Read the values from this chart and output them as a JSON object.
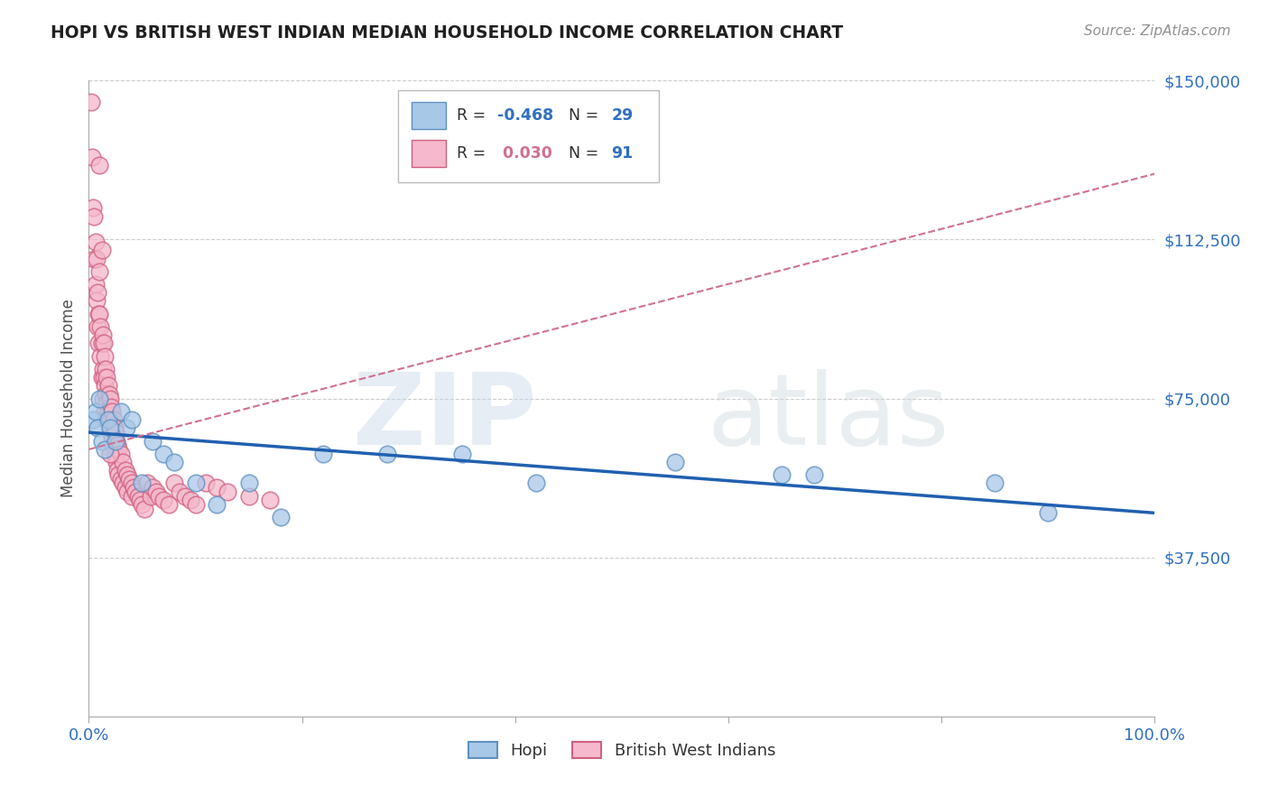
{
  "title": "HOPI VS BRITISH WEST INDIAN MEDIAN HOUSEHOLD INCOME CORRELATION CHART",
  "source": "Source: ZipAtlas.com",
  "ylabel": "Median Household Income",
  "xlim": [
    0,
    1.0
  ],
  "ylim": [
    0,
    150000
  ],
  "yticks": [
    0,
    37500,
    75000,
    112500,
    150000
  ],
  "hopi_R": -0.468,
  "hopi_N": 29,
  "bwi_R": 0.03,
  "bwi_N": 91,
  "hopi_color": "#a8c8e8",
  "bwi_color": "#f5b8cc",
  "hopi_edge_color": "#6090c0",
  "bwi_edge_color": "#d06080",
  "hopi_line_color": "#2060b0",
  "bwi_line_color": "#d07090",
  "background_color": "#ffffff",
  "grid_color": "#cccccc",
  "title_color": "#202020",
  "axis_label_color": "#505050",
  "tick_label_color": "#3070c0",
  "source_color": "#909090",
  "legend_text_color": "#303030",
  "legend_R1_color": "#3070c0",
  "legend_R2_color": "#d07090",
  "legend_N_color": "#3070c0",
  "hopi_x": [
    0.004,
    0.006,
    0.008,
    0.01,
    0.012,
    0.015,
    0.018,
    0.02,
    0.025,
    0.03,
    0.035,
    0.04,
    0.05,
    0.06,
    0.07,
    0.08,
    0.1,
    0.12,
    0.15,
    0.18,
    0.22,
    0.28,
    0.35,
    0.42,
    0.55,
    0.65,
    0.68,
    0.85,
    0.9
  ],
  "hopi_y": [
    70000,
    72000,
    68000,
    75000,
    65000,
    63000,
    70000,
    68000,
    65000,
    72000,
    68000,
    70000,
    55000,
    65000,
    62000,
    60000,
    55000,
    50000,
    55000,
    47000,
    62000,
    62000,
    62000,
    55000,
    60000,
    57000,
    57000,
    55000,
    48000
  ],
  "bwi_x": [
    0.002,
    0.003,
    0.004,
    0.005,
    0.005,
    0.006,
    0.006,
    0.007,
    0.007,
    0.008,
    0.008,
    0.009,
    0.009,
    0.01,
    0.01,
    0.01,
    0.011,
    0.011,
    0.012,
    0.012,
    0.012,
    0.013,
    0.013,
    0.013,
    0.014,
    0.014,
    0.015,
    0.015,
    0.015,
    0.016,
    0.016,
    0.016,
    0.017,
    0.017,
    0.018,
    0.018,
    0.019,
    0.019,
    0.02,
    0.02,
    0.021,
    0.021,
    0.022,
    0.022,
    0.023,
    0.023,
    0.024,
    0.024,
    0.025,
    0.025,
    0.026,
    0.026,
    0.027,
    0.027,
    0.028,
    0.028,
    0.03,
    0.03,
    0.032,
    0.032,
    0.034,
    0.034,
    0.036,
    0.036,
    0.038,
    0.04,
    0.04,
    0.042,
    0.044,
    0.046,
    0.048,
    0.05,
    0.052,
    0.055,
    0.058,
    0.06,
    0.063,
    0.066,
    0.07,
    0.075,
    0.08,
    0.085,
    0.09,
    0.095,
    0.1,
    0.11,
    0.12,
    0.13,
    0.15,
    0.17,
    0.02
  ],
  "bwi_y": [
    145000,
    132000,
    120000,
    118000,
    108000,
    112000,
    102000,
    108000,
    98000,
    100000,
    92000,
    95000,
    88000,
    130000,
    105000,
    95000,
    92000,
    85000,
    110000,
    88000,
    80000,
    90000,
    82000,
    75000,
    88000,
    80000,
    85000,
    78000,
    72000,
    82000,
    76000,
    70000,
    80000,
    74000,
    78000,
    72000,
    76000,
    70000,
    75000,
    68000,
    73000,
    67000,
    72000,
    66000,
    70000,
    64000,
    68000,
    62000,
    67000,
    61000,
    65000,
    60000,
    64000,
    58000,
    63000,
    57000,
    62000,
    56000,
    60000,
    55000,
    58000,
    54000,
    57000,
    53000,
    56000,
    55000,
    52000,
    54000,
    53000,
    52000,
    51000,
    50000,
    49000,
    55000,
    52000,
    54000,
    53000,
    52000,
    51000,
    50000,
    55000,
    53000,
    52000,
    51000,
    50000,
    55000,
    54000,
    53000,
    52000,
    51000,
    62000
  ],
  "hopi_trend_x": [
    0.0,
    1.0
  ],
  "hopi_trend_y": [
    67000,
    48000
  ],
  "bwi_trend_x": [
    0.0,
    1.0
  ],
  "bwi_trend_y": [
    63000,
    128000
  ]
}
